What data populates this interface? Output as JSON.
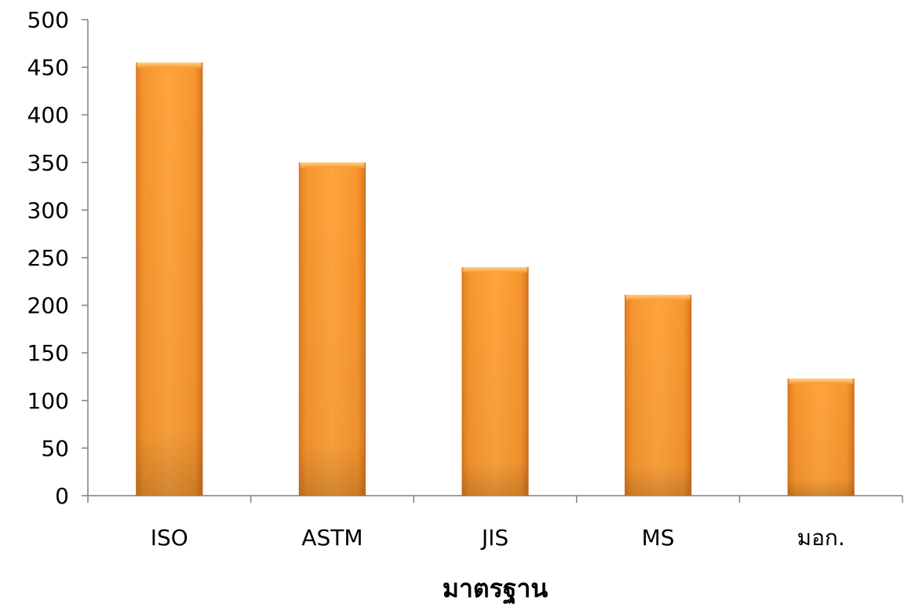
{
  "chart_data": {
    "type": "bar",
    "title": "",
    "xlabel": "มาตรฐาน",
    "ylabel": "",
    "categories": [
      "ISO",
      "ASTM",
      "JIS",
      "MS",
      "มอก."
    ],
    "values": [
      455,
      350,
      240,
      211,
      123
    ],
    "ylim": [
      0,
      500
    ],
    "yticks": [
      0,
      50,
      100,
      150,
      200,
      250,
      300,
      350,
      400,
      450,
      500
    ],
    "grid": false,
    "legend": "none",
    "colors": {
      "bar_light": "#ffb050",
      "bar_main": "#f7962e",
      "bar_dark": "#c9681a",
      "axis": "#7f7f7f"
    }
  }
}
